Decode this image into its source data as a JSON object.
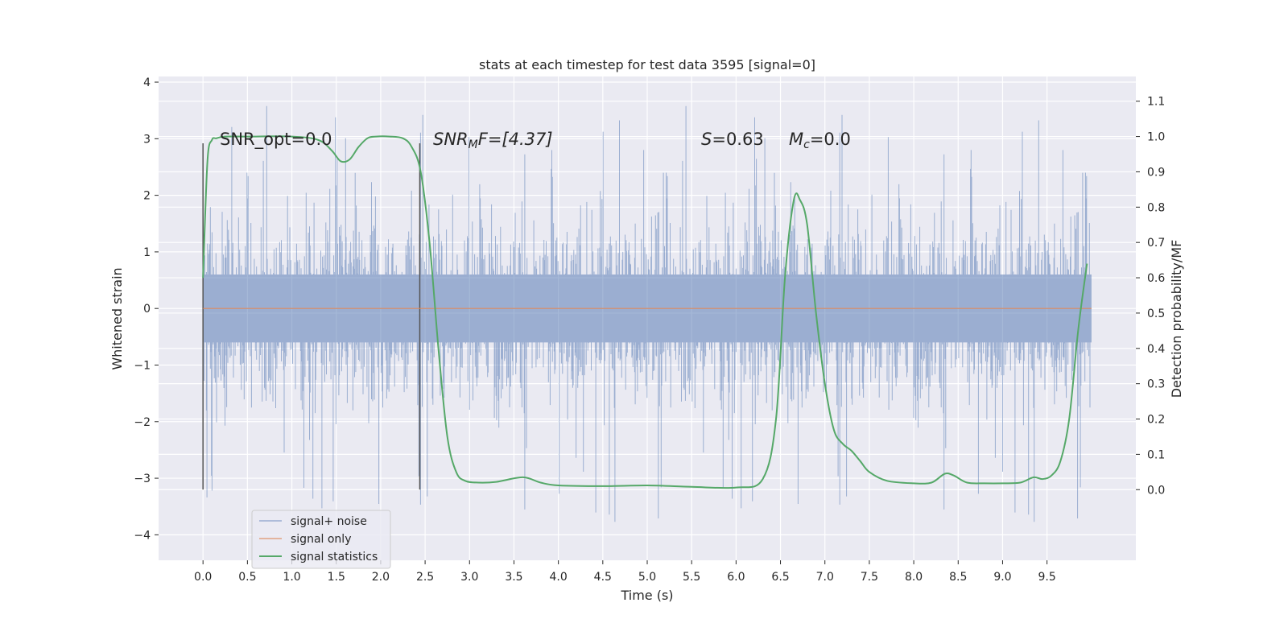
{
  "chart_data": {
    "type": "line",
    "title": "stats at each timestep for test data 3595 [signal=0]",
    "xlabel": "Time (s)",
    "ylabel": "Whitened strain",
    "y2label": "Detection probability/MF",
    "xlim": [
      -0.5,
      10.5
    ],
    "ylim": [
      -4.45,
      4.1
    ],
    "y2lim": [
      -0.2,
      1.17
    ],
    "xticks": [
      "0.0",
      "0.5",
      "1.0",
      "1.5",
      "2.0",
      "2.5",
      "3.0",
      "3.5",
      "4.0",
      "4.5",
      "5.0",
      "5.5",
      "6.0",
      "6.5",
      "7.0",
      "7.5",
      "8.0",
      "8.5",
      "9.0",
      "9.5"
    ],
    "yticks": [
      "−4",
      "−3",
      "−2",
      "−1",
      "0",
      "1",
      "2",
      "3",
      "4"
    ],
    "y2ticks": [
      "0.0",
      "0.1",
      "0.2",
      "0.3",
      "0.4",
      "0.5",
      "0.6",
      "0.7",
      "0.8",
      "0.9",
      "1.0",
      "1.1"
    ],
    "grid": true,
    "legend_position": "lower-left",
    "legend": [
      {
        "label": "signal+ noise",
        "color": "#4c72b0"
      },
      {
        "label": "signal only",
        "color": "#dd8452"
      },
      {
        "label": "signal statistics",
        "color": "#55a868"
      }
    ],
    "annotations": {
      "snr_opt": "SNR_opt=0.0",
      "snr_mf_base": "SNR",
      "snr_mf_sub": "M",
      "snr_mf_rest": "F=[4.37]",
      "s_base": "S",
      "s_rest": "=0.63",
      "mc_base": "M",
      "mc_sub": "c",
      "mc_rest": "=0.0"
    },
    "vlines_x": [
      0.0,
      2.44
    ],
    "noise": {
      "name": "signal+ noise",
      "color": "#4c72b0",
      "x_range": [
        0.0,
        10.0
      ],
      "typical_range": [
        -1.7,
        1.7
      ],
      "max": 3.75,
      "min": -3.85
    },
    "signal_only": {
      "name": "signal only",
      "color": "#dd8452",
      "x": [
        0.0,
        10.0
      ],
      "y": [
        0.0,
        0.0
      ]
    },
    "statistics": {
      "name": "signal statistics",
      "color": "#55a868",
      "x": [
        0.0,
        0.05,
        0.1,
        0.15,
        0.25,
        0.5,
        1.0,
        1.3,
        1.45,
        1.55,
        1.65,
        1.75,
        1.85,
        1.95,
        2.1,
        2.25,
        2.35,
        2.45,
        2.55,
        2.65,
        2.75,
        2.85,
        2.95,
        3.1,
        3.3,
        3.6,
        3.8,
        4.0,
        4.5,
        5.0,
        5.5,
        6.0,
        6.3,
        6.45,
        6.55,
        6.65,
        6.72,
        6.8,
        6.9,
        7.0,
        7.1,
        7.2,
        7.3,
        7.4,
        7.5,
        7.7,
        8.0,
        8.2,
        8.35,
        8.45,
        8.6,
        8.8,
        9.0,
        9.2,
        9.35,
        9.45,
        9.55,
        9.65,
        9.75,
        9.85,
        9.95
      ],
      "y": [
        0.6,
        0.93,
        0.99,
        0.995,
        1.0,
        1.0,
        1.0,
        0.99,
        0.96,
        0.93,
        0.935,
        0.97,
        0.995,
        1.0,
        1.0,
        0.995,
        0.97,
        0.9,
        0.7,
        0.4,
        0.15,
        0.05,
        0.025,
        0.02,
        0.022,
        0.035,
        0.02,
        0.012,
        0.01,
        0.012,
        0.008,
        0.006,
        0.03,
        0.2,
        0.6,
        0.82,
        0.82,
        0.75,
        0.5,
        0.3,
        0.17,
        0.13,
        0.11,
        0.08,
        0.05,
        0.025,
        0.018,
        0.02,
        0.045,
        0.04,
        0.02,
        0.018,
        0.018,
        0.02,
        0.035,
        0.03,
        0.04,
        0.08,
        0.2,
        0.45,
        0.64
      ]
    }
  }
}
